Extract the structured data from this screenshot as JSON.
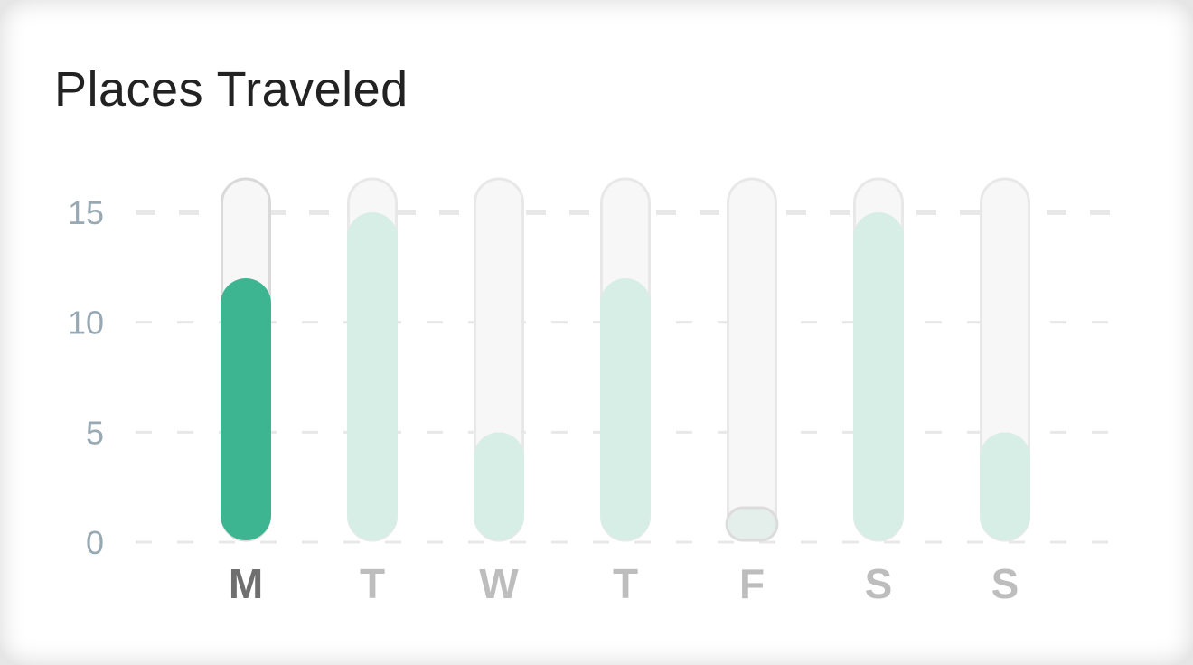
{
  "card": {
    "title": "Places Traveled"
  },
  "colors": {
    "active_bar": "#3db591",
    "inactive_bar": "#d7eee7",
    "track_fill": "#f7f7f7",
    "track_stroke_active": "#d9d9d9",
    "track_stroke": "#e8e8e8",
    "grid": "#e8e8e8",
    "active_label": "#6f6f6f",
    "inactive_label": "#bdbdbd",
    "tick_label": "#98a9b4"
  },
  "chart_data": {
    "type": "bar",
    "title": "Places Traveled",
    "xlabel": "",
    "ylabel": "",
    "categories": [
      "M",
      "T",
      "W",
      "T",
      "F",
      "S",
      "S"
    ],
    "values": [
      12,
      15,
      5,
      12,
      1,
      15,
      5
    ],
    "active_index": 0,
    "ylim": [
      0,
      15
    ],
    "yticks": [
      "0",
      "5",
      "10",
      "15"
    ],
    "grid": true,
    "legend": "none"
  }
}
